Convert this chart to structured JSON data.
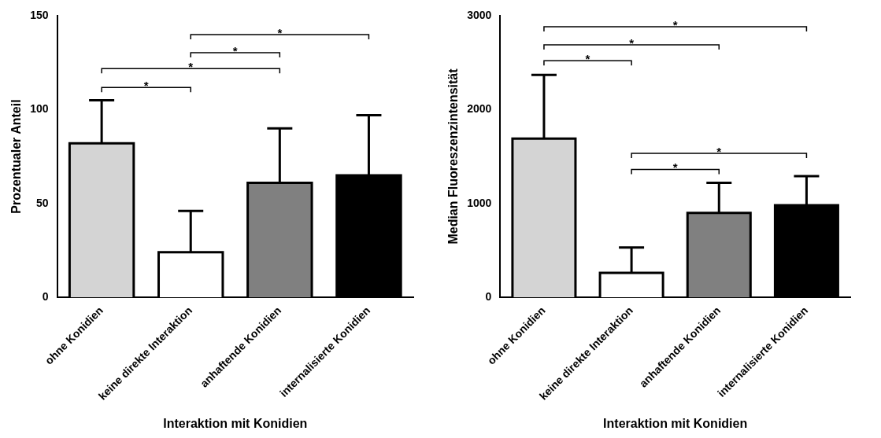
{
  "chart_data": [
    {
      "type": "bar",
      "ylabel": "Prozentualer Anteil",
      "xlabel": "Interaktion mit Konidien",
      "categories": [
        "ohne Konidien",
        "keine direkte Interaktion",
        "anhaftende Konidien",
        "internalisierte Konidien"
      ],
      "values": [
        82,
        24,
        61,
        65
      ],
      "errors": [
        [
          82,
          105
        ],
        [
          24,
          46
        ],
        [
          61,
          90
        ],
        [
          65,
          97
        ]
      ],
      "colors": [
        "#d4d4d4",
        "#ffffff",
        "#808080",
        "#000000"
      ],
      "ylim": [
        0,
        150
      ],
      "yticks": [
        0,
        50,
        100,
        150
      ],
      "grid": false,
      "legend": false,
      "annotations": [
        "*",
        "*",
        "*",
        "*"
      ]
    },
    {
      "type": "bar",
      "ylabel": "Median Fluoreszenzintensität",
      "xlabel": "Interaktion mit Konidien",
      "categories": [
        "ohne Konidien",
        "keine direkte Interaktion",
        "anhaftende Konidien",
        "internalisierte Konidien"
      ],
      "values": [
        1690,
        260,
        900,
        980
      ],
      "errors": [
        [
          1690,
          2370
        ],
        [
          260,
          530
        ],
        [
          900,
          1220
        ],
        [
          980,
          1290
        ]
      ],
      "colors": [
        "#d4d4d4",
        "#ffffff",
        "#808080",
        "#000000"
      ],
      "ylim": [
        0,
        3000
      ],
      "yticks": [
        0,
        1000,
        2000,
        3000
      ],
      "grid": false,
      "legend": false,
      "annotations": [
        "*",
        "*",
        "*",
        "*",
        "*"
      ]
    }
  ]
}
